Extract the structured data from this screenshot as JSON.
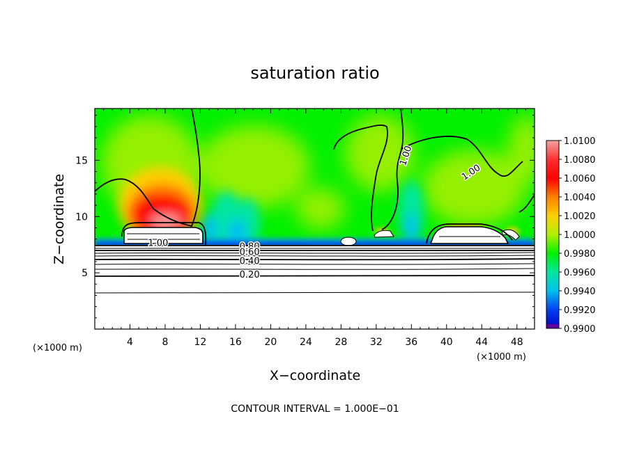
{
  "chart_data": {
    "type": "heatmap",
    "title": "saturation ratio",
    "xlabel": "X−coordinate",
    "ylabel": "Z−coordinate",
    "x_unit": "(×1000 m)",
    "y_unit": "(×1000 m)",
    "xlim": [
      0,
      50
    ],
    "ylim": [
      0,
      19.6
    ],
    "x_ticks": [
      4,
      8,
      12,
      16,
      20,
      24,
      28,
      32,
      36,
      40,
      44,
      48
    ],
    "y_ticks": [
      5,
      10,
      15
    ],
    "colorbar": {
      "min": 0.99,
      "max": 1.01,
      "levels": [
        {
          "value": "1.0100",
          "color": "#f4a0a0"
        },
        {
          "value": "1.0080",
          "color": "#ff3030"
        },
        {
          "value": "1.0060",
          "color": "#ff0000"
        },
        {
          "value": "1.0040",
          "color": "#ff8000"
        },
        {
          "value": "1.0020",
          "color": "#ffd000"
        },
        {
          "value": "1.0000",
          "color": "#b0f000"
        },
        {
          "value": "0.9980",
          "color": "#00f000"
        },
        {
          "value": "0.9960",
          "color": "#00e6a0"
        },
        {
          "value": "0.9940",
          "color": "#00c0f0"
        },
        {
          "value": "0.9920",
          "color": "#0040f0"
        },
        {
          "value": "0.9900",
          "color": "#0000c0"
        }
      ],
      "bottom_color": "#6000a0"
    },
    "contour_labels": [
      {
        "text": "1.00",
        "x": 35.4,
        "y": 15.4,
        "rotate": -72
      },
      {
        "text": "1.00",
        "x": 42.8,
        "y": 13.9,
        "rotate": -34
      },
      {
        "text": "1.00",
        "x": 7.2,
        "y": 7.6,
        "rotate": 0
      },
      {
        "text": "0.80",
        "x": 17.6,
        "y": 7.3,
        "rotate": 0
      },
      {
        "text": "0.60",
        "x": 17.6,
        "y": 6.8,
        "rotate": 0
      },
      {
        "text": "0.40",
        "x": 17.6,
        "y": 6.0,
        "rotate": 0
      },
      {
        "text": "0.20",
        "x": 17.6,
        "y": 4.8,
        "rotate": 0
      }
    ],
    "contour_interval_text": "CONTOUR INTERVAL = 1.000E−01"
  }
}
